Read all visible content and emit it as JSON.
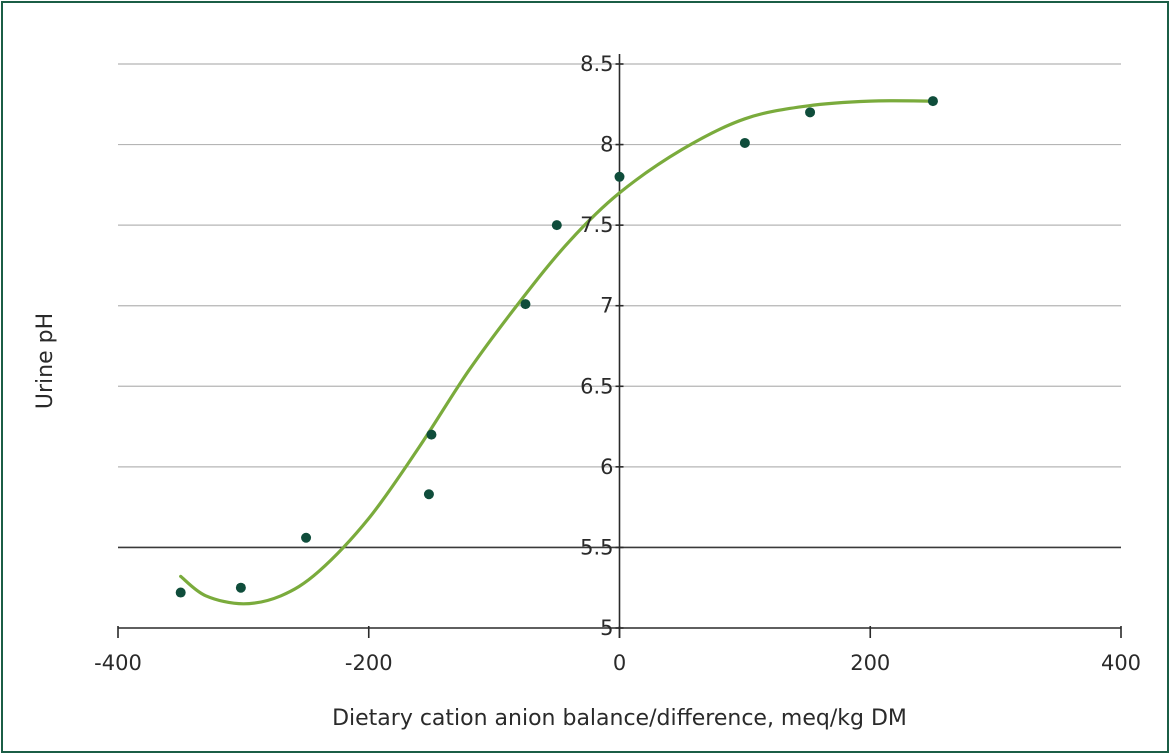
{
  "chart_data": {
    "type": "scatter",
    "title": "",
    "xlabel": "Dietary cation anion balance/difference, meq/kg DM",
    "ylabel": "Urine pH",
    "xlim": [
      -400,
      400
    ],
    "ylim": [
      5,
      8.5
    ],
    "x_ticks": [
      -400,
      -200,
      0,
      200,
      400
    ],
    "y_ticks": [
      5,
      5.5,
      6,
      6.5,
      7,
      7.5,
      8,
      8.5
    ],
    "x_tick_labels": [
      "-400",
      "-200",
      "0",
      "200",
      "400"
    ],
    "y_tick_labels": [
      "5",
      "5.5",
      "6",
      "6.5",
      "7",
      "7.5",
      "8",
      "8.5"
    ],
    "grid": "horizontal",
    "emphasized_gridline_y": 5.5,
    "series": [
      {
        "kind": "points",
        "color": "#0f4d3b",
        "points": [
          {
            "x": -350,
            "y": 5.22
          },
          {
            "x": -302,
            "y": 5.25
          },
          {
            "x": -250,
            "y": 5.56
          },
          {
            "x": -150,
            "y": 6.2
          },
          {
            "x": -152,
            "y": 5.83
          },
          {
            "x": -75,
            "y": 7.01
          },
          {
            "x": -50,
            "y": 7.5
          },
          {
            "x": 0,
            "y": 7.8
          },
          {
            "x": 100,
            "y": 8.01
          },
          {
            "x": 152,
            "y": 8.2
          },
          {
            "x": 250,
            "y": 8.27
          }
        ]
      },
      {
        "kind": "fitted-curve",
        "color": "#7aab3c",
        "points": [
          {
            "x": -350,
            "y": 5.32
          },
          {
            "x": -330,
            "y": 5.2
          },
          {
            "x": -300,
            "y": 5.15
          },
          {
            "x": -270,
            "y": 5.2
          },
          {
            "x": -240,
            "y": 5.35
          },
          {
            "x": -200,
            "y": 5.68
          },
          {
            "x": -160,
            "y": 6.12
          },
          {
            "x": -120,
            "y": 6.6
          },
          {
            "x": -80,
            "y": 7.02
          },
          {
            "x": -40,
            "y": 7.4
          },
          {
            "x": 0,
            "y": 7.7
          },
          {
            "x": 50,
            "y": 7.97
          },
          {
            "x": 100,
            "y": 8.16
          },
          {
            "x": 150,
            "y": 8.24
          },
          {
            "x": 200,
            "y": 8.27
          },
          {
            "x": 250,
            "y": 8.27
          }
        ]
      }
    ]
  }
}
